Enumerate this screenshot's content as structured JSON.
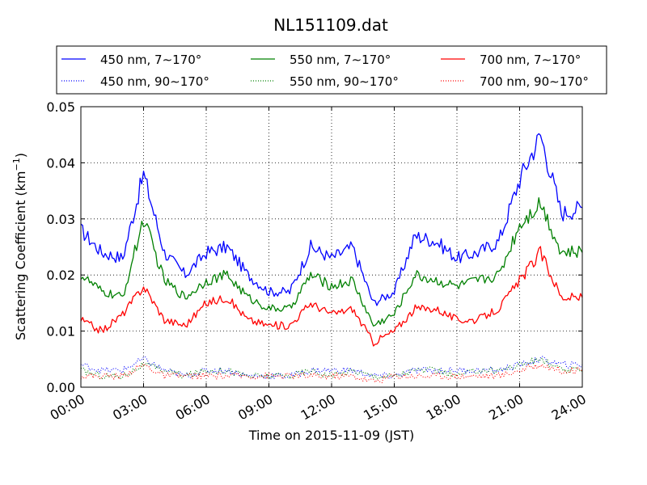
{
  "chart_data": {
    "type": "line",
    "title": "NL151109.dat",
    "xlabel": "Time on 2015-11-09 (JST)",
    "ylabel": "Scattering Coefficient (km",
    "ylabel_exponent": "−1",
    "ylabel_suffix": ")",
    "xlim": [
      "00:00",
      "24:00"
    ],
    "ylim": [
      0,
      0.05
    ],
    "grid": true,
    "legend_position": "top",
    "x_tick_labels": [
      "00:00",
      "03:00",
      "06:00",
      "09:00",
      "12:00",
      "15:00",
      "18:00",
      "21:00",
      "24:00"
    ],
    "y_tick_labels": [
      "0.00",
      "0.01",
      "0.02",
      "0.03",
      "0.04",
      "0.05"
    ],
    "x": [
      "00:00",
      "01:00",
      "02:00",
      "03:00",
      "04:00",
      "05:00",
      "06:00",
      "07:00",
      "08:00",
      "09:00",
      "10:00",
      "11:00",
      "12:00",
      "13:00",
      "14:00",
      "15:00",
      "16:00",
      "17:00",
      "18:00",
      "19:00",
      "20:00",
      "21:00",
      "22:00",
      "23:00",
      "24:00"
    ],
    "series": [
      {
        "name": "450 nm, 7∼170°",
        "color": "#0000ff",
        "style": "solid",
        "values": [
          0.028,
          0.024,
          0.023,
          0.038,
          0.024,
          0.02,
          0.024,
          0.025,
          0.02,
          0.017,
          0.017,
          0.025,
          0.023,
          0.025,
          0.015,
          0.017,
          0.027,
          0.026,
          0.023,
          0.024,
          0.026,
          0.037,
          0.045,
          0.031,
          0.032
        ]
      },
      {
        "name": "550 nm, 7∼170°",
        "color": "#008000",
        "style": "solid",
        "values": [
          0.02,
          0.017,
          0.016,
          0.03,
          0.019,
          0.016,
          0.019,
          0.02,
          0.016,
          0.014,
          0.014,
          0.02,
          0.018,
          0.019,
          0.011,
          0.013,
          0.02,
          0.019,
          0.018,
          0.019,
          0.02,
          0.029,
          0.033,
          0.024,
          0.024
        ]
      },
      {
        "name": "700 nm, 7∼170°",
        "color": "#ff0000",
        "style": "solid",
        "values": [
          0.012,
          0.01,
          0.013,
          0.018,
          0.012,
          0.011,
          0.015,
          0.016,
          0.012,
          0.011,
          0.011,
          0.015,
          0.013,
          0.014,
          0.008,
          0.01,
          0.014,
          0.014,
          0.012,
          0.012,
          0.014,
          0.019,
          0.024,
          0.016,
          0.016
        ]
      },
      {
        "name": "450 nm, 90∼170°",
        "color": "#0000ff",
        "style": "dotted",
        "values": [
          0.004,
          0.003,
          0.003,
          0.005,
          0.003,
          0.002,
          0.003,
          0.003,
          0.002,
          0.002,
          0.002,
          0.003,
          0.003,
          0.003,
          0.002,
          0.002,
          0.003,
          0.003,
          0.003,
          0.003,
          0.003,
          0.004,
          0.005,
          0.004,
          0.004
        ]
      },
      {
        "name": "550 nm, 90∼170°",
        "color": "#008000",
        "style": "dotted",
        "values": [
          0.003,
          0.002,
          0.002,
          0.004,
          0.003,
          0.002,
          0.003,
          0.003,
          0.002,
          0.002,
          0.002,
          0.003,
          0.002,
          0.003,
          0.002,
          0.002,
          0.003,
          0.003,
          0.002,
          0.003,
          0.003,
          0.004,
          0.005,
          0.003,
          0.003
        ]
      },
      {
        "name": "700 nm, 90∼170°",
        "color": "#ff0000",
        "style": "dotted",
        "values": [
          0.002,
          0.002,
          0.002,
          0.004,
          0.002,
          0.002,
          0.002,
          0.002,
          0.002,
          0.002,
          0.002,
          0.002,
          0.002,
          0.002,
          0.001,
          0.002,
          0.002,
          0.002,
          0.002,
          0.002,
          0.002,
          0.003,
          0.004,
          0.003,
          0.003
        ]
      }
    ]
  }
}
